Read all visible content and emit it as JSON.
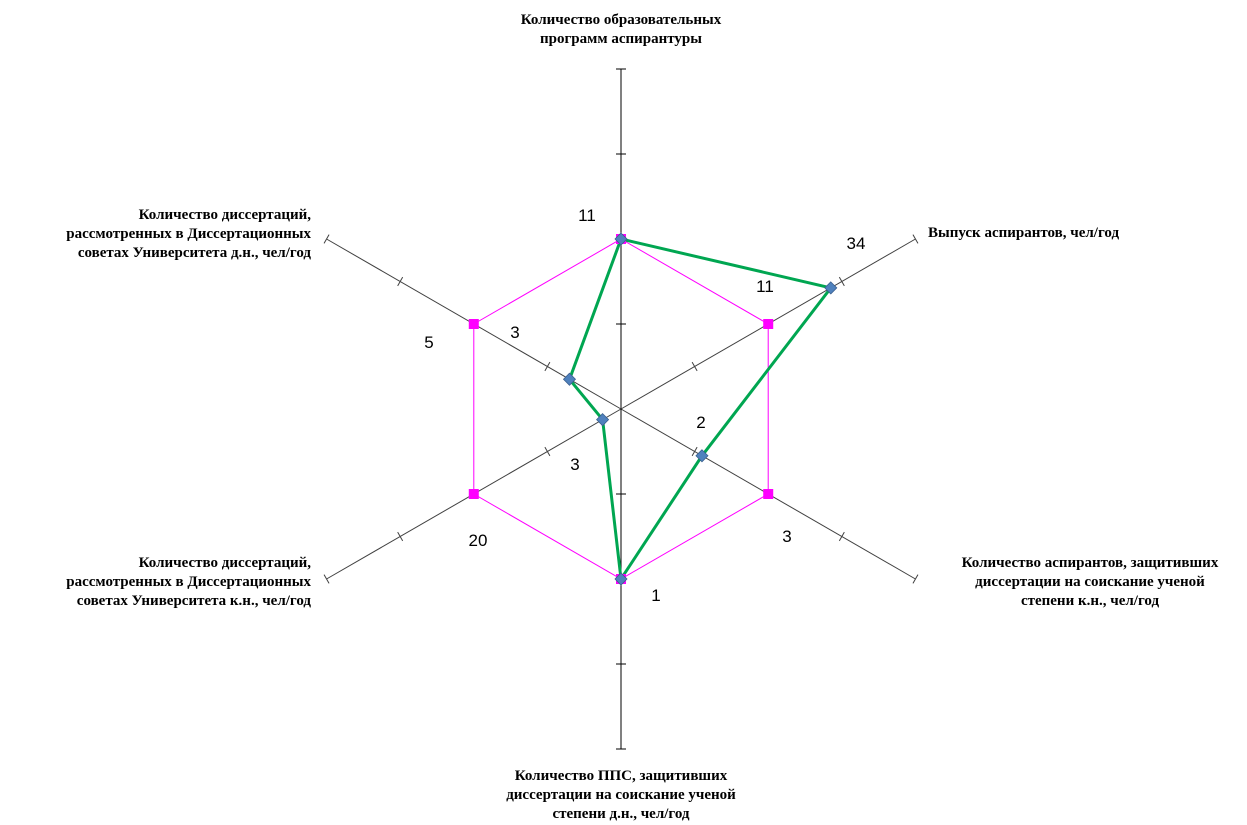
{
  "chart_data": {
    "type": "radar",
    "axes": [
      {
        "label_lines": [
          "Количество образовательных",
          "программ аспирантуры"
        ],
        "outer_value": "11",
        "inner_value": ""
      },
      {
        "label_lines": [
          "Выпуск аспирантов, чел/год"
        ],
        "outer_value": "34",
        "inner_value": "11"
      },
      {
        "label_lines": [
          "Количество аспирантов, защитивших",
          "диссертации на соискание ученой",
          "степени к.н., чел/год"
        ],
        "outer_value": "3",
        "inner_value": "2"
      },
      {
        "label_lines": [
          "Количество ППС, защитивших",
          "диссертации на соискание ученой",
          "степени д.н., чел/год"
        ],
        "outer_value": "1",
        "inner_value": ""
      },
      {
        "label_lines": [
          "Количество диссертаций,",
          "рассмотренных в Диссертационных",
          "советах Университета к.н., чел/год"
        ],
        "outer_value": "20",
        "inner_value": "3"
      },
      {
        "label_lines": [
          "Количество диссертаций,",
          "рассмотренных в Диссертационных",
          "советах Университета д.н., чел/год"
        ],
        "outer_value": "5",
        "inner_value": "3"
      }
    ],
    "scale_max": 4,
    "series": [
      {
        "color": "#ff00ff",
        "marker": "square",
        "line_width": 1,
        "values": [
          2,
          2,
          2,
          2,
          2,
          2
        ]
      },
      {
        "color": "#00a651",
        "marker": "diamond",
        "marker_color": "#4f81bd",
        "line_width": 3,
        "values": [
          2,
          2.85,
          1.1,
          2,
          0.25,
          0.7
        ]
      }
    ]
  }
}
